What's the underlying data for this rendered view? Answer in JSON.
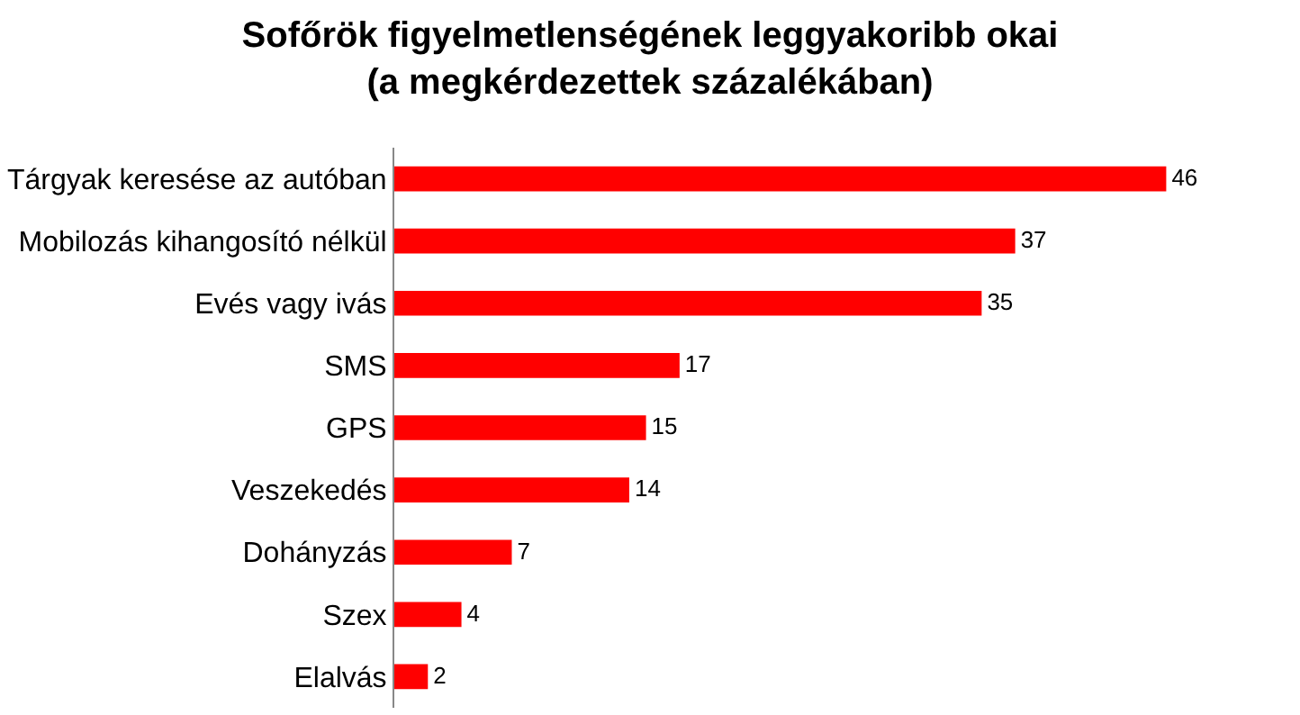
{
  "chart_data": {
    "type": "bar",
    "title": "Sofőrök figyelmetlenségének leggyakoribb okai\n(a megkérdezettek százalékában)",
    "orientation": "horizontal",
    "categories": [
      "Tárgyak keresése az autóban",
      "Mobilozás kihangosító nélkül",
      "Evés vagy ivás",
      "SMS",
      "GPS",
      "Veszekedés",
      "Dohányzás",
      "Szex",
      "Elalvás"
    ],
    "values": [
      46,
      37,
      35,
      17,
      15,
      14,
      7,
      4,
      2
    ],
    "color": "#ff0000",
    "data_labels": true,
    "grid": false,
    "legend": false
  }
}
